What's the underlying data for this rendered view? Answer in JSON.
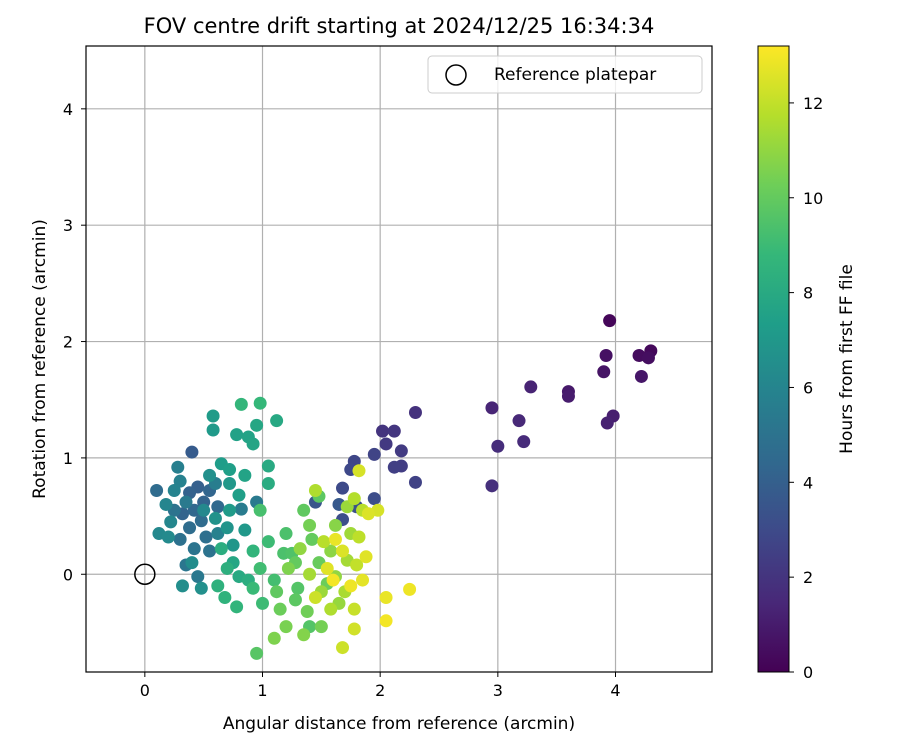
{
  "chart_data": {
    "type": "scatter",
    "title": "FOV centre drift starting at 2024/12/25 16:34:34",
    "xlabel": "Angular distance from reference (arcmin)",
    "ylabel": "Rotation from reference (arcmin)",
    "xlim": [
      -0.5,
      4.82
    ],
    "ylim": [
      -0.84,
      4.54
    ],
    "xticks": [
      0,
      1,
      2,
      3,
      4
    ],
    "yticks": [
      0,
      1,
      2,
      3,
      4
    ],
    "grid": true,
    "legend": {
      "placement": "top-right",
      "entries": [
        "Reference platepar"
      ]
    },
    "reference_point": {
      "x": 0,
      "y": 0,
      "label": "Reference platepar",
      "marker": "open-circle"
    },
    "colorbar": {
      "label": "Hours from first FF file",
      "colormap": "viridis",
      "range": [
        0,
        13.2
      ],
      "ticks": [
        0,
        2,
        4,
        6,
        8,
        10,
        12
      ]
    },
    "points": [
      {
        "x": 3.95,
        "y": 2.18,
        "h": 0.2
      },
      {
        "x": 4.3,
        "y": 1.92,
        "h": 0.3
      },
      {
        "x": 4.2,
        "y": 1.88,
        "h": 0.4
      },
      {
        "x": 4.28,
        "y": 1.86,
        "h": 0.5
      },
      {
        "x": 3.92,
        "y": 1.88,
        "h": 0.6
      },
      {
        "x": 3.9,
        "y": 1.74,
        "h": 0.7
      },
      {
        "x": 4.22,
        "y": 1.7,
        "h": 0.8
      },
      {
        "x": 3.6,
        "y": 1.57,
        "h": 0.9
      },
      {
        "x": 3.6,
        "y": 1.53,
        "h": 1.0
      },
      {
        "x": 3.98,
        "y": 1.36,
        "h": 1.1
      },
      {
        "x": 3.93,
        "y": 1.3,
        "h": 1.2
      },
      {
        "x": 3.28,
        "y": 1.61,
        "h": 1.3
      },
      {
        "x": 2.95,
        "y": 1.43,
        "h": 1.4
      },
      {
        "x": 3.18,
        "y": 1.32,
        "h": 1.5
      },
      {
        "x": 3.22,
        "y": 1.14,
        "h": 1.6
      },
      {
        "x": 3.0,
        "y": 1.1,
        "h": 1.7
      },
      {
        "x": 2.95,
        "y": 0.76,
        "h": 1.8
      },
      {
        "x": 2.3,
        "y": 1.39,
        "h": 1.9
      },
      {
        "x": 2.02,
        "y": 1.23,
        "h": 2.0
      },
      {
        "x": 2.12,
        "y": 1.23,
        "h": 2.1
      },
      {
        "x": 2.05,
        "y": 1.12,
        "h": 2.2
      },
      {
        "x": 2.18,
        "y": 1.06,
        "h": 2.3
      },
      {
        "x": 2.18,
        "y": 0.93,
        "h": 2.4
      },
      {
        "x": 2.12,
        "y": 0.92,
        "h": 2.5
      },
      {
        "x": 2.3,
        "y": 0.79,
        "h": 2.6
      },
      {
        "x": 1.95,
        "y": 1.03,
        "h": 2.7
      },
      {
        "x": 1.78,
        "y": 0.97,
        "h": 2.8
      },
      {
        "x": 1.75,
        "y": 0.9,
        "h": 2.9
      },
      {
        "x": 1.68,
        "y": 0.74,
        "h": 3.0
      },
      {
        "x": 1.95,
        "y": 0.65,
        "h": 3.1
      },
      {
        "x": 1.68,
        "y": 0.47,
        "h": 3.2
      },
      {
        "x": 1.8,
        "y": 0.58,
        "h": 3.3
      },
      {
        "x": 1.45,
        "y": 0.62,
        "h": 3.5
      },
      {
        "x": 0.4,
        "y": 1.05,
        "h": 3.8
      },
      {
        "x": 0.45,
        "y": 0.75,
        "h": 4.0
      },
      {
        "x": 0.38,
        "y": 0.7,
        "h": 4.1
      },
      {
        "x": 0.5,
        "y": 0.62,
        "h": 4.2
      },
      {
        "x": 0.55,
        "y": 0.72,
        "h": 4.3
      },
      {
        "x": 0.42,
        "y": 0.55,
        "h": 4.4
      },
      {
        "x": 0.62,
        "y": 0.58,
        "h": 4.5
      },
      {
        "x": 0.48,
        "y": 0.46,
        "h": 4.6
      },
      {
        "x": 0.38,
        "y": 0.4,
        "h": 4.7
      },
      {
        "x": 0.52,
        "y": 0.32,
        "h": 4.8
      },
      {
        "x": 0.3,
        "y": 0.3,
        "h": 4.9
      },
      {
        "x": 0.55,
        "y": 0.2,
        "h": 5.0
      },
      {
        "x": 0.42,
        "y": 0.22,
        "h": 5.1
      },
      {
        "x": 0.35,
        "y": 0.08,
        "h": 5.2
      },
      {
        "x": 0.45,
        "y": -0.02,
        "h": 5.3
      },
      {
        "x": 0.95,
        "y": 0.62,
        "h": 5.4
      },
      {
        "x": 0.82,
        "y": 0.56,
        "h": 5.5
      },
      {
        "x": 0.6,
        "y": 0.78,
        "h": 5.6
      },
      {
        "x": 0.28,
        "y": 0.92,
        "h": 5.7
      },
      {
        "x": 0.3,
        "y": 0.8,
        "h": 5.8
      },
      {
        "x": 0.25,
        "y": 0.72,
        "h": 5.9
      },
      {
        "x": 0.18,
        "y": 0.6,
        "h": 6.0
      },
      {
        "x": 0.22,
        "y": 0.45,
        "h": 6.1
      },
      {
        "x": 0.12,
        "y": 0.35,
        "h": 6.2
      },
      {
        "x": 0.2,
        "y": 0.32,
        "h": 6.3
      },
      {
        "x": 0.4,
        "y": 0.1,
        "h": 6.4
      },
      {
        "x": 0.32,
        "y": -0.1,
        "h": 6.5
      },
      {
        "x": 0.48,
        "y": -0.12,
        "h": 6.6
      },
      {
        "x": 0.6,
        "y": 0.48,
        "h": 6.7
      },
      {
        "x": 0.7,
        "y": 0.4,
        "h": 6.8
      },
      {
        "x": 0.75,
        "y": 0.25,
        "h": 6.9
      },
      {
        "x": 0.85,
        "y": 0.38,
        "h": 7.0
      },
      {
        "x": 0.58,
        "y": 1.24,
        "h": 7.1
      },
      {
        "x": 0.58,
        "y": 1.36,
        "h": 7.2
      },
      {
        "x": 0.65,
        "y": 0.95,
        "h": 7.3
      },
      {
        "x": 0.72,
        "y": 0.9,
        "h": 7.4
      },
      {
        "x": 0.78,
        "y": 1.2,
        "h": 7.5
      },
      {
        "x": 0.88,
        "y": 1.18,
        "h": 7.6
      },
      {
        "x": 0.92,
        "y": 1.12,
        "h": 7.7
      },
      {
        "x": 0.95,
        "y": 1.28,
        "h": 7.8
      },
      {
        "x": 1.12,
        "y": 1.32,
        "h": 7.9
      },
      {
        "x": 1.05,
        "y": 0.93,
        "h": 8.0
      },
      {
        "x": 1.05,
        "y": 0.78,
        "h": 8.1
      },
      {
        "x": 0.65,
        "y": 0.22,
        "h": 8.2
      },
      {
        "x": 0.7,
        "y": 0.05,
        "h": 8.3
      },
      {
        "x": 0.62,
        "y": -0.1,
        "h": 8.4
      },
      {
        "x": 0.68,
        "y": -0.2,
        "h": 8.5
      },
      {
        "x": 0.78,
        "y": -0.28,
        "h": 8.6
      },
      {
        "x": 0.82,
        "y": 1.46,
        "h": 8.7
      },
      {
        "x": 0.98,
        "y": 1.47,
        "h": 8.8
      },
      {
        "x": 0.92,
        "y": -0.12,
        "h": 8.9
      },
      {
        "x": 1.0,
        "y": -0.25,
        "h": 9.0
      },
      {
        "x": 0.98,
        "y": 0.05,
        "h": 9.1
      },
      {
        "x": 1.1,
        "y": -0.05,
        "h": 9.2
      },
      {
        "x": 0.98,
        "y": 0.55,
        "h": 9.3
      },
      {
        "x": 1.2,
        "y": 0.35,
        "h": 9.4
      },
      {
        "x": 1.25,
        "y": 0.18,
        "h": 9.5
      },
      {
        "x": 1.3,
        "y": -0.12,
        "h": 9.6
      },
      {
        "x": 0.95,
        "y": -0.68,
        "h": 9.7
      },
      {
        "x": 1.48,
        "y": 0.67,
        "h": 9.8
      },
      {
        "x": 1.35,
        "y": 0.55,
        "h": 9.9
      },
      {
        "x": 1.42,
        "y": 0.3,
        "h": 10.0
      },
      {
        "x": 1.48,
        "y": 0.1,
        "h": 10.1
      },
      {
        "x": 1.55,
        "y": -0.08,
        "h": 10.2
      },
      {
        "x": 1.38,
        "y": -0.32,
        "h": 10.3
      },
      {
        "x": 1.5,
        "y": -0.45,
        "h": 10.4
      },
      {
        "x": 1.2,
        "y": -0.45,
        "h": 10.5
      },
      {
        "x": 1.1,
        "y": -0.55,
        "h": 10.6
      },
      {
        "x": 1.35,
        "y": -0.52,
        "h": 10.7
      },
      {
        "x": 1.62,
        "y": 0.42,
        "h": 10.8
      },
      {
        "x": 1.58,
        "y": 0.2,
        "h": 10.9
      },
      {
        "x": 1.62,
        "y": -0.02,
        "h": 11.0
      },
      {
        "x": 1.65,
        "y": -0.25,
        "h": 11.1
      },
      {
        "x": 1.72,
        "y": 0.58,
        "h": 11.2
      },
      {
        "x": 1.75,
        "y": 0.35,
        "h": 11.3
      },
      {
        "x": 1.72,
        "y": 0.12,
        "h": 11.4
      },
      {
        "x": 1.7,
        "y": -0.15,
        "h": 11.5
      },
      {
        "x": 1.45,
        "y": 0.72,
        "h": 11.6
      },
      {
        "x": 1.78,
        "y": 0.65,
        "h": 11.7
      },
      {
        "x": 1.85,
        "y": 0.55,
        "h": 11.8
      },
      {
        "x": 1.82,
        "y": 0.32,
        "h": 11.9
      },
      {
        "x": 1.8,
        "y": 0.08,
        "h": 12.0
      },
      {
        "x": 1.78,
        "y": -0.3,
        "h": 12.1
      },
      {
        "x": 1.68,
        "y": -0.63,
        "h": 12.2
      },
      {
        "x": 1.78,
        "y": -0.47,
        "h": 12.3
      },
      {
        "x": 1.82,
        "y": 0.89,
        "h": 12.4
      },
      {
        "x": 1.9,
        "y": 0.52,
        "h": 12.5
      },
      {
        "x": 1.88,
        "y": 0.15,
        "h": 12.6
      },
      {
        "x": 1.85,
        "y": -0.05,
        "h": 12.7
      },
      {
        "x": 2.05,
        "y": -0.2,
        "h": 12.8
      },
      {
        "x": 2.25,
        "y": -0.13,
        "h": 12.9
      },
      {
        "x": 2.05,
        "y": -0.4,
        "h": 13.0
      },
      {
        "x": 1.6,
        "y": -0.05,
        "h": 13.0
      },
      {
        "x": 1.55,
        "y": 0.05,
        "h": 12.6
      },
      {
        "x": 1.45,
        "y": -0.2,
        "h": 12.2
      },
      {
        "x": 1.52,
        "y": 0.28,
        "h": 11.8
      },
      {
        "x": 1.4,
        "y": 0.0,
        "h": 11.4
      },
      {
        "x": 1.32,
        "y": 0.22,
        "h": 11.0
      },
      {
        "x": 1.22,
        "y": 0.05,
        "h": 10.6
      },
      {
        "x": 1.15,
        "y": -0.3,
        "h": 10.2
      },
      {
        "x": 1.28,
        "y": -0.22,
        "h": 9.8
      },
      {
        "x": 1.18,
        "y": 0.18,
        "h": 9.4
      },
      {
        "x": 1.05,
        "y": 0.28,
        "h": 9.0
      },
      {
        "x": 0.92,
        "y": 0.2,
        "h": 8.6
      },
      {
        "x": 0.88,
        "y": -0.05,
        "h": 8.2
      },
      {
        "x": 0.75,
        "y": 0.1,
        "h": 7.8
      },
      {
        "x": 0.8,
        "y": 0.68,
        "h": 7.4
      },
      {
        "x": 0.72,
        "y": 0.78,
        "h": 7.0
      },
      {
        "x": 0.55,
        "y": 0.85,
        "h": 6.6
      },
      {
        "x": 0.5,
        "y": 0.55,
        "h": 6.2
      },
      {
        "x": 0.62,
        "y": 0.35,
        "h": 5.8
      },
      {
        "x": 0.35,
        "y": 0.62,
        "h": 5.4
      },
      {
        "x": 0.25,
        "y": 0.55,
        "h": 5.0
      },
      {
        "x": 0.1,
        "y": 0.72,
        "h": 4.6
      },
      {
        "x": 0.32,
        "y": 0.52,
        "h": 4.2
      },
      {
        "x": 1.65,
        "y": 0.6,
        "h": 3.7
      },
      {
        "x": 1.98,
        "y": 0.55,
        "h": 12.4
      },
      {
        "x": 1.4,
        "y": -0.45,
        "h": 9.6
      },
      {
        "x": 1.12,
        "y": -0.15,
        "h": 9.9
      },
      {
        "x": 1.62,
        "y": 0.3,
        "h": 12.8
      },
      {
        "x": 1.75,
        "y": -0.1,
        "h": 12.9
      },
      {
        "x": 1.68,
        "y": 0.2,
        "h": 12.5
      },
      {
        "x": 1.58,
        "y": -0.3,
        "h": 11.6
      },
      {
        "x": 1.5,
        "y": -0.15,
        "h": 11.2
      },
      {
        "x": 1.4,
        "y": 0.42,
        "h": 10.4
      },
      {
        "x": 1.28,
        "y": 0.1,
        "h": 10.0
      },
      {
        "x": 0.8,
        "y": -0.02,
        "h": 8.0
      },
      {
        "x": 0.72,
        "y": 0.55,
        "h": 7.2
      },
      {
        "x": 0.85,
        "y": 0.85,
        "h": 7.6
      }
    ]
  }
}
